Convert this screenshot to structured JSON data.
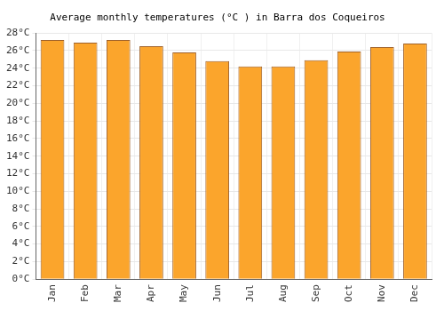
{
  "chart_data": {
    "type": "bar",
    "title": "Average monthly temperatures (°C ) in Barra dos Coqueiros",
    "categories": [
      "Jan",
      "Feb",
      "Mar",
      "Apr",
      "May",
      "Jun",
      "Jul",
      "Aug",
      "Sep",
      "Oct",
      "Nov",
      "Dec"
    ],
    "values": [
      27.2,
      26.9,
      27.2,
      26.5,
      25.8,
      24.8,
      24.2,
      24.2,
      24.9,
      25.9,
      26.4,
      26.8
    ],
    "color": "#fba52c",
    "ylim": [
      0,
      28
    ],
    "yticks": [
      {
        "value": 0,
        "label": "0°C"
      },
      {
        "value": 2,
        "label": "2°C"
      },
      {
        "value": 4,
        "label": "4°C"
      },
      {
        "value": 6,
        "label": "6°C"
      },
      {
        "value": 8,
        "label": "8°C"
      },
      {
        "value": 10,
        "label": "10°C"
      },
      {
        "value": 12,
        "label": "12°C"
      },
      {
        "value": 14,
        "label": "14°C"
      },
      {
        "value": 16,
        "label": "16°C"
      },
      {
        "value": 18,
        "label": "18°C"
      },
      {
        "value": 20,
        "label": "20°C"
      },
      {
        "value": 22,
        "label": "22°C"
      },
      {
        "value": 24,
        "label": "24°C"
      },
      {
        "value": 26,
        "label": "26°C"
      },
      {
        "value": 28,
        "label": "28°C"
      }
    ],
    "grid": true
  }
}
